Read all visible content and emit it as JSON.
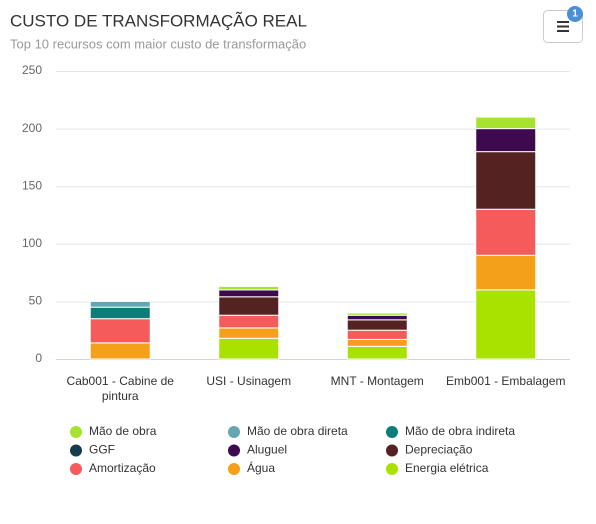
{
  "chart_data": {
    "type": "bar",
    "stacked": true,
    "title": "CUSTO DE TRANSFORMAÇÃO REAL",
    "subtitle": "Top 10 recursos com maior custo de transformação",
    "notification_count": "1",
    "categories": [
      "Cab001 - Cabine de pintura",
      "USI - Usinagem",
      "MNT - Montagem",
      "Emb001 - Embalagem"
    ],
    "ylim": [
      0,
      250
    ],
    "yticks": [
      0,
      50,
      100,
      150,
      200,
      250
    ],
    "grid": true,
    "series": [
      {
        "name": "Mão de obra",
        "color": "#a6e22e",
        "values": [
          0,
          3,
          2,
          10
        ]
      },
      {
        "name": "Mão de obra direta",
        "color": "#64a5b3",
        "values": [
          5,
          0,
          0,
          0
        ]
      },
      {
        "name": "Mão de obra indireta",
        "color": "#0e7c78",
        "values": [
          10,
          0,
          0,
          0
        ]
      },
      {
        "name": "GGF",
        "color": "#173a4d",
        "values": [
          0,
          0,
          0,
          0
        ]
      },
      {
        "name": "Aluguel",
        "color": "#3d0a4f",
        "values": [
          0,
          6,
          4,
          20
        ]
      },
      {
        "name": "Depreciação",
        "color": "#552222",
        "values": [
          0,
          16,
          9,
          50
        ]
      },
      {
        "name": "Amortização",
        "color": "#f45b5b",
        "values": [
          21,
          11,
          8,
          40
        ]
      },
      {
        "name": "Água",
        "color": "#f5a01a",
        "values": [
          14,
          9,
          6,
          30
        ]
      },
      {
        "name": "Energia elétrica",
        "color": "#a9e200",
        "values": [
          0,
          18,
          11,
          60
        ]
      }
    ]
  }
}
